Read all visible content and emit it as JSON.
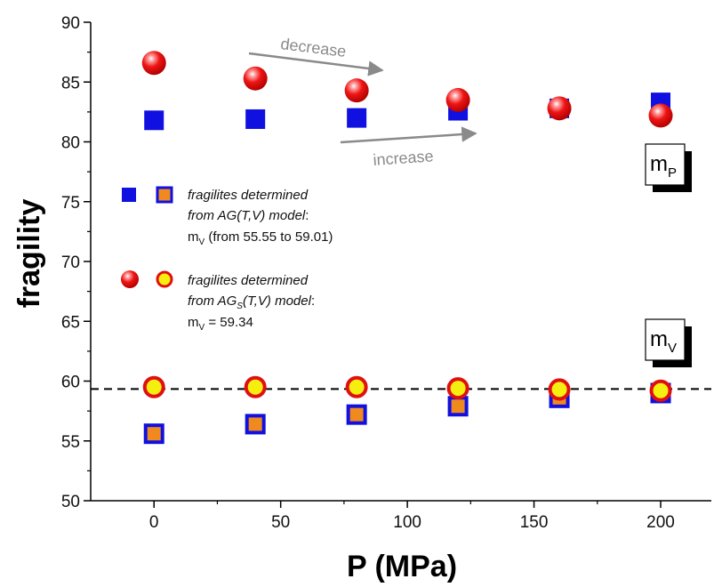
{
  "chart_data": {
    "type": "scatter",
    "xlabel": "P (MPa)",
    "ylabel": "fragility",
    "xlim": [
      -25,
      220
    ],
    "ylim": [
      50,
      90
    ],
    "x_ticks": [
      0,
      50,
      100,
      150,
      200
    ],
    "y_ticks": [
      50,
      55,
      60,
      65,
      70,
      75,
      80,
      85,
      90
    ],
    "series": [
      {
        "name": "mP (AG(T,V) model)",
        "marker": "square",
        "style": "blue-square",
        "points": [
          [
            0,
            81.8
          ],
          [
            40,
            81.9
          ],
          [
            80,
            82.0
          ],
          [
            120,
            82.6
          ],
          [
            160,
            82.8
          ],
          [
            200,
            83.3
          ]
        ]
      },
      {
        "name": "mV (AG(T,V) model)",
        "marker": "square",
        "style": "orange-square-blue-edge",
        "points": [
          [
            0,
            55.6
          ],
          [
            40,
            56.4
          ],
          [
            80,
            57.2
          ],
          [
            120,
            57.9
          ],
          [
            160,
            58.6
          ],
          [
            200,
            59.0
          ]
        ]
      },
      {
        "name": "mP (AGs(T,V) model)",
        "marker": "circle",
        "style": "red-sphere",
        "points": [
          [
            0,
            86.6
          ],
          [
            40,
            85.3
          ],
          [
            80,
            84.3
          ],
          [
            120,
            83.5
          ],
          [
            160,
            82.8
          ],
          [
            200,
            82.2
          ]
        ]
      },
      {
        "name": "mV (AGs(T,V) model)",
        "marker": "circle",
        "style": "yellow-circle-red-edge",
        "points": [
          [
            0,
            59.5
          ],
          [
            40,
            59.5
          ],
          [
            80,
            59.5
          ],
          [
            120,
            59.4
          ],
          [
            160,
            59.3
          ],
          [
            200,
            59.2
          ]
        ]
      }
    ],
    "reference_line": {
      "y": 59.34,
      "style": "dashed"
    },
    "annotations": {
      "decrease": "decrease",
      "increase": "increase",
      "box_mP_main": "m",
      "box_mP_sub": "P",
      "box_mV_main": "m",
      "box_mV_sub": "V"
    },
    "legend": {
      "placement": "center-left",
      "entry1_line1": "fragilites determined",
      "entry1_line2_a": "from AG(T,V) model",
      "entry1_line2_b": ":",
      "entry1_line3_a": "m",
      "entry1_line3_sub": "V",
      "entry1_line3_b": " (from 55.55 to 59.01)",
      "entry2_line1": "fragilites determined",
      "entry2_line2_a": "from AG",
      "entry2_line2_sub": "S",
      "entry2_line2_b": "(T,V) model",
      "entry2_line2_c": ":",
      "entry2_line3_a": "m",
      "entry2_line3_sub": "V",
      "entry2_line3_b": " = 59.34"
    },
    "colors": {
      "blue": "#1010e0",
      "orange": "#f08a1e",
      "red": "#e01010",
      "yellow": "#f5ef10",
      "arrow": "#8a8a8a"
    }
  }
}
